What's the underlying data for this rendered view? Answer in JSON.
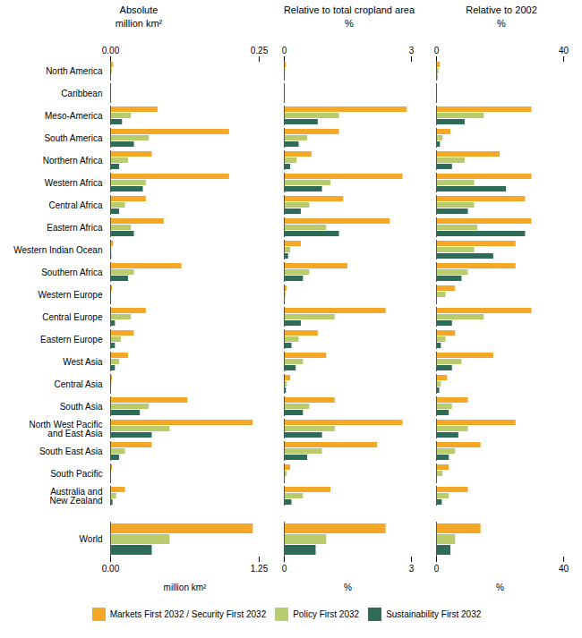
{
  "chart_data": [
    {
      "type": "bar",
      "orientation": "horizontal",
      "title": "Absolute\nmillion km²",
      "categories": [
        "North America",
        "Caribbean",
        "Meso-America",
        "South America",
        "Northern Africa",
        "Western Africa",
        "Central Africa",
        "Eastern Africa",
        "Western Indian Ocean",
        "Southern Africa",
        "Western Europe",
        "Central Europe",
        "Eastern Europe",
        "West Asia",
        "Central Asia",
        "South Asia",
        "North West Pacific\nand East Asia",
        "South East Asia",
        "South Pacific",
        "Australia and\nNew Zealand"
      ],
      "series": [
        {
          "name": "Markets First 2032 / Security First 2032",
          "color": "#F5A828",
          "values": [
            0.005,
            0.0,
            0.08,
            0.2,
            0.07,
            0.2,
            0.06,
            0.09,
            0.005,
            0.12,
            0.003,
            0.06,
            0.04,
            0.03,
            0.003,
            0.13,
            0.24,
            0.07,
            0.003,
            0.025
          ]
        },
        {
          "name": "Policy First 2032",
          "color": "#B8CC6E",
          "values": [
            0.003,
            0.0,
            0.035,
            0.065,
            0.03,
            0.06,
            0.025,
            0.035,
            0.002,
            0.04,
            0.001,
            0.035,
            0.018,
            0.015,
            0.002,
            0.065,
            0.1,
            0.025,
            0.001,
            0.01
          ]
        },
        {
          "name": "Sustainability First 2032",
          "color": "#2E6B58",
          "values": [
            0.001,
            0.0,
            0.02,
            0.04,
            0.015,
            0.055,
            0.015,
            0.04,
            0.002,
            0.03,
            0.0,
            0.008,
            0.008,
            0.008,
            0.001,
            0.05,
            0.07,
            0.015,
            0.0,
            0.004
          ]
        }
      ],
      "xlim": [
        0,
        0.25
      ],
      "xticks": [
        {
          "value": 0,
          "label": "0.00"
        },
        0.25
      ],
      "grid": false
    },
    {
      "type": "bar",
      "orientation": "horizontal",
      "title": "Relative to total cropland area\n%",
      "tick_labels": "x",
      "categories": [
        "North America",
        "Caribbean",
        "Meso-America",
        "South America",
        "Northern Africa",
        "Western Africa",
        "Central Africa",
        "Eastern Africa",
        "Western Indian Ocean",
        "Southern Africa",
        "Western Europe",
        "Central Europe",
        "Eastern Europe",
        "West Asia",
        "Central Asia",
        "South Asia",
        "North West Pacific\nand East Asia",
        "South East Asia",
        "South Pacific",
        "Australia and\nNew Zealand"
      ],
      "series": [
        {
          "name": "Markets First 2032 / Security First 2032",
          "color": "#F5A828",
          "values": [
            0.05,
            0.0,
            2.9,
            1.3,
            0.65,
            2.8,
            1.4,
            2.5,
            0.4,
            1.5,
            0.07,
            2.4,
            0.8,
            1.0,
            0.15,
            1.2,
            2.8,
            2.2,
            0.15,
            1.1
          ]
        },
        {
          "name": "Policy First 2032",
          "color": "#B8CC6E",
          "values": [
            0.03,
            0.0,
            1.3,
            0.55,
            0.3,
            1.1,
            0.6,
            1.0,
            0.15,
            0.6,
            0.04,
            1.2,
            0.35,
            0.45,
            0.07,
            0.6,
            1.2,
            0.9,
            0.07,
            0.45
          ]
        },
        {
          "name": "Sustainability First 2032",
          "color": "#2E6B58",
          "values": [
            0.01,
            0.0,
            0.8,
            0.35,
            0.15,
            0.9,
            0.4,
            1.3,
            0.1,
            0.45,
            0.0,
            0.4,
            0.18,
            0.28,
            0.05,
            0.45,
            0.9,
            0.55,
            0.0,
            0.18
          ]
        }
      ],
      "xlim": [
        0,
        3
      ],
      "xticks": [
        0,
        3
      ],
      "grid": false
    },
    {
      "type": "bar",
      "orientation": "horizontal",
      "title": "Relative to 2002\n%",
      "tick_labels": "x",
      "categories": [
        "North America",
        "Caribbean",
        "Meso-America",
        "South America",
        "Northern Africa",
        "Western Africa",
        "Central Africa",
        "Eastern Africa",
        "Western Indian Ocean",
        "Southern Africa",
        "Western Europe",
        "Central Europe",
        "Eastern Europe",
        "West Asia",
        "Central Asia",
        "South Asia",
        "North West Pacific\nand East Asia",
        "South East Asia",
        "South Pacific",
        "Australia and\nNew Zealand"
      ],
      "series": [
        {
          "name": "Markets First 2032 / Security First 2032",
          "color": "#F5A828",
          "values": [
            1.2,
            0.0,
            30.0,
            4.5,
            20.0,
            30.0,
            28.0,
            30.0,
            25.0,
            25.0,
            6.0,
            30.0,
            6.0,
            18.0,
            3.5,
            10.0,
            25.0,
            14.0,
            4.0,
            10.0
          ]
        },
        {
          "name": "Policy First 2032",
          "color": "#B8CC6E",
          "values": [
            0.8,
            0.0,
            15.0,
            2.0,
            9.0,
            12.0,
            12.0,
            13.0,
            12.0,
            10.0,
            3.0,
            15.0,
            3.0,
            8.0,
            1.5,
            5.0,
            10.0,
            6.0,
            2.0,
            4.0
          ]
        },
        {
          "name": "Sustainability First 2032",
          "color": "#2E6B58",
          "values": [
            0.4,
            0.0,
            9.0,
            1.2,
            5.0,
            22.0,
            10.0,
            28.0,
            18.0,
            8.0,
            0.0,
            5.0,
            1.5,
            5.0,
            1.0,
            4.0,
            7.0,
            4.0,
            0.0,
            1.8
          ]
        }
      ],
      "xlim": [
        0,
        40
      ],
      "xticks": [
        0,
        40
      ],
      "grid": false
    },
    {
      "type": "bar",
      "orientation": "horizontal",
      "xlabel": "million km²",
      "categories": [
        "World"
      ],
      "series": [
        {
          "name": "Markets First 2032 / Security First 2032",
          "color": "#F5A828",
          "values": [
            1.2
          ]
        },
        {
          "name": "Policy First 2032",
          "color": "#B8CC6E",
          "values": [
            0.5
          ]
        },
        {
          "name": "Sustainability First 2032",
          "color": "#2E6B58",
          "values": [
            0.35
          ]
        }
      ],
      "xlim": [
        0,
        1.25
      ],
      "xticks": [
        {
          "value": 0,
          "label": "0.00"
        },
        1.25
      ],
      "grid": false
    },
    {
      "type": "bar",
      "orientation": "horizontal",
      "xlabel": "%",
      "tick_labels": "x",
      "categories": [
        "World"
      ],
      "series": [
        {
          "name": "Markets First 2032 / Security First 2032",
          "color": "#F5A828",
          "values": [
            2.4
          ]
        },
        {
          "name": "Policy First 2032",
          "color": "#B8CC6E",
          "values": [
            1.0
          ]
        },
        {
          "name": "Sustainability First 2032",
          "color": "#2E6B58",
          "values": [
            0.75
          ]
        }
      ],
      "xlim": [
        0,
        3
      ],
      "xticks": [
        0,
        3
      ],
      "grid": false
    },
    {
      "type": "bar",
      "orientation": "horizontal",
      "xlabel": "%",
      "tick_labels": "x",
      "categories": [
        "World"
      ],
      "series": [
        {
          "name": "Markets First 2032 / Security First 2032",
          "color": "#F5A828",
          "values": [
            14.0
          ]
        },
        {
          "name": "Policy First 2032",
          "color": "#B8CC6E",
          "values": [
            6.0
          ]
        },
        {
          "name": "Sustainability First 2032",
          "color": "#2E6B58",
          "values": [
            4.5
          ]
        }
      ],
      "xlim": [
        0,
        40
      ],
      "xticks": [
        0,
        40
      ],
      "grid": false
    }
  ]
}
